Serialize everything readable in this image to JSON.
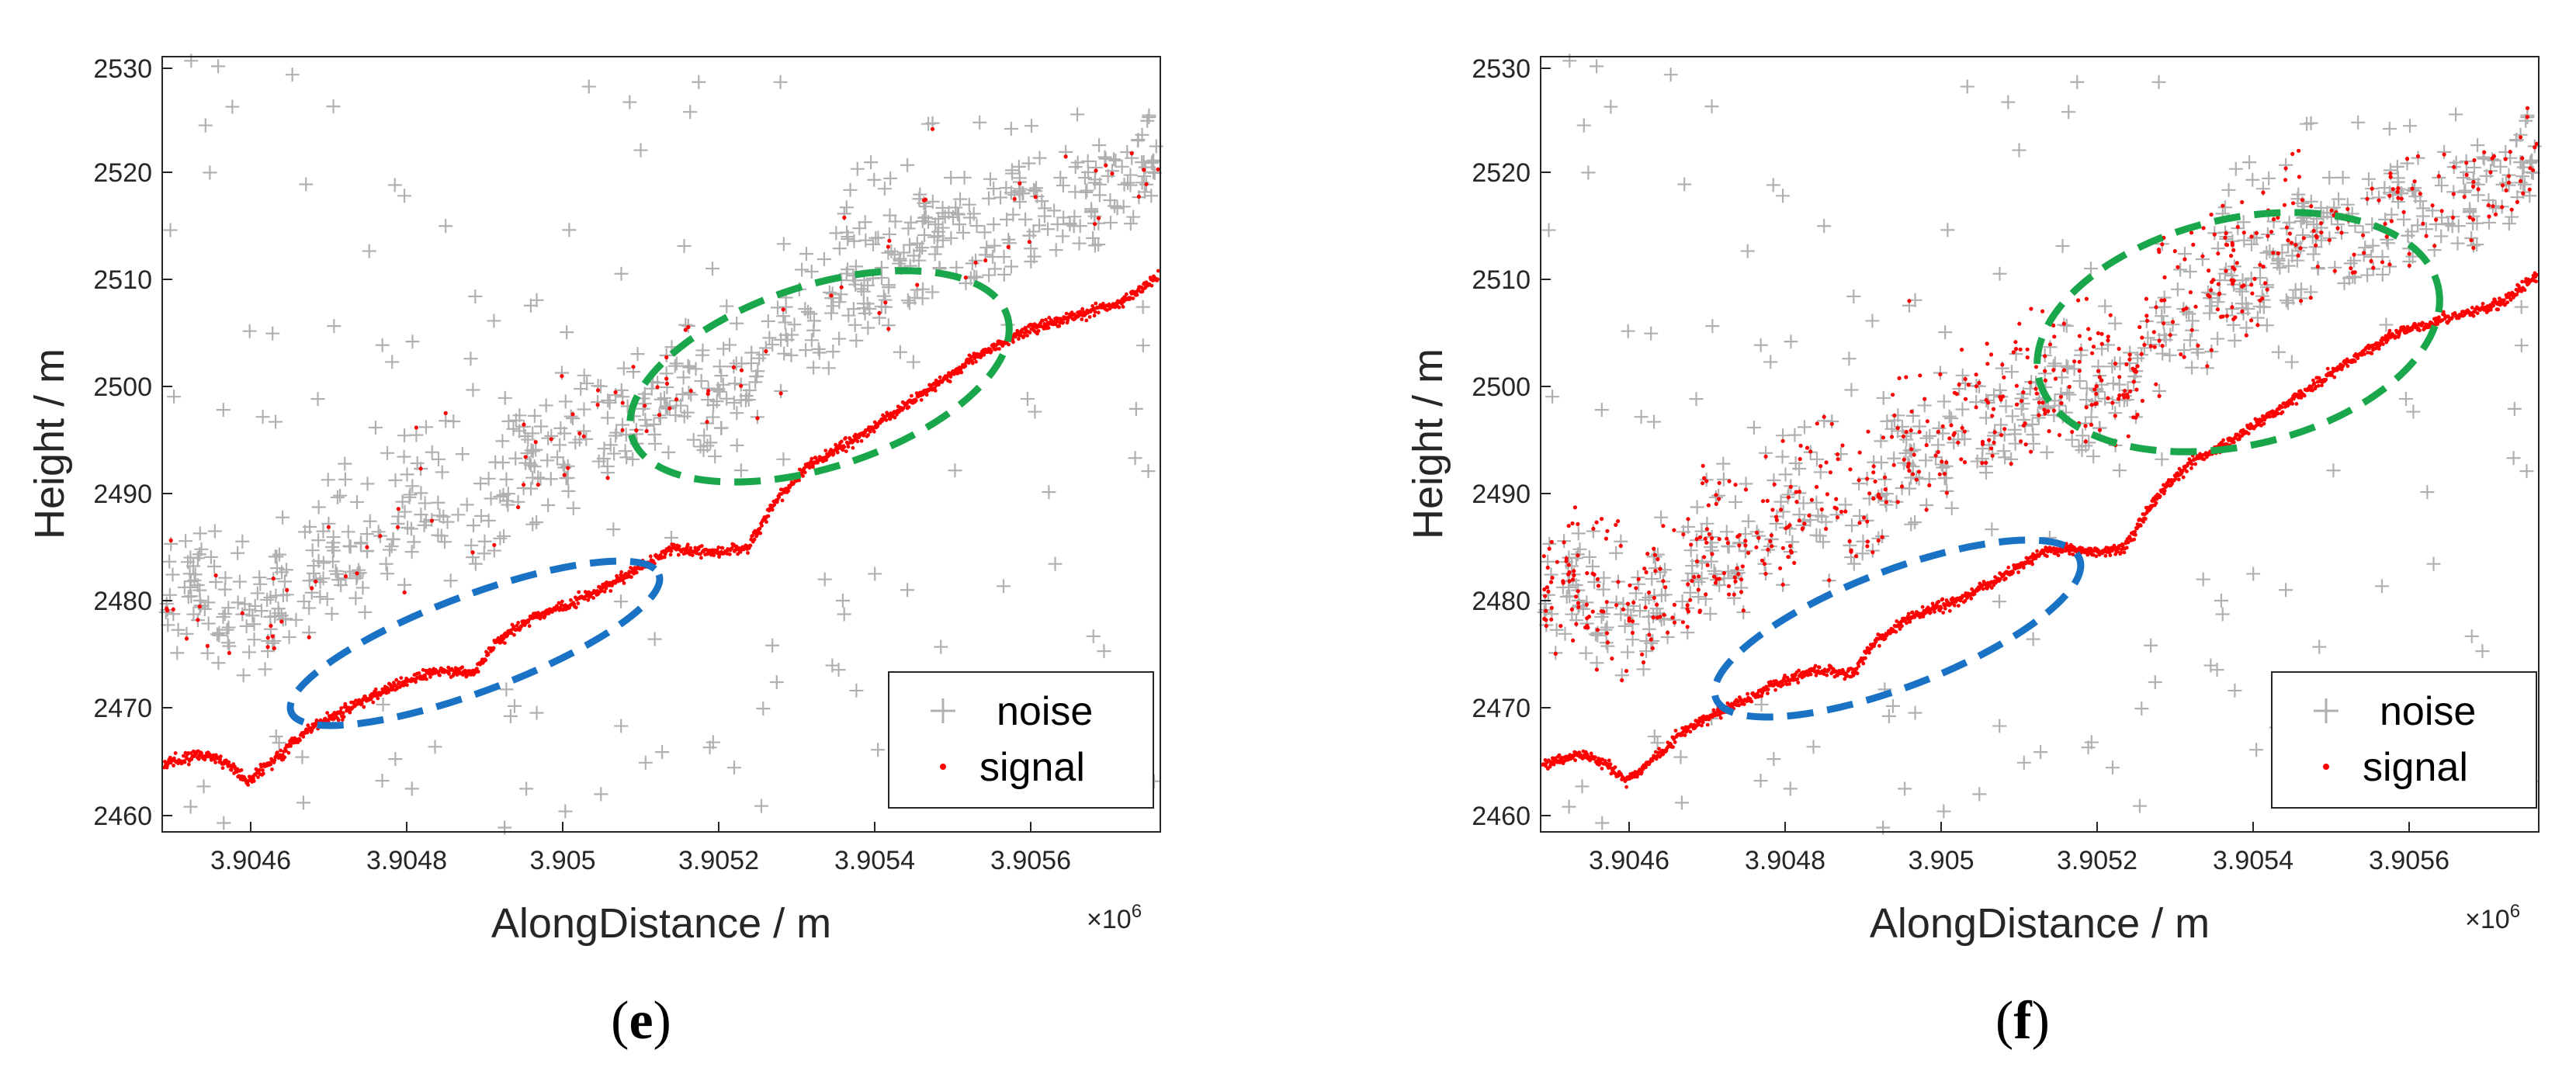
{
  "colors": {
    "noise": "#b0b0b0",
    "signal": "#ff0000",
    "blue_ellipse": "#1a72c4",
    "green_ellipse": "#1aa64a",
    "axis": "#262626"
  },
  "chart_data": [
    {
      "id": "e",
      "type": "scatter",
      "caption_letter": "e",
      "caption_open": "(",
      "caption_close": ")",
      "xlabel": "AlongDistance / m",
      "ylabel": "Height / m",
      "x_multiplier": "×10",
      "x_multiplier_exp": "6",
      "xlim": [
        3.90447,
        3.90575
      ],
      "ylim": [
        2458,
        2531
      ],
      "xticks": [
        3.9046,
        3.9048,
        3.905,
        3.9052,
        3.9054,
        3.9056
      ],
      "xtick_labels": [
        "3.9046",
        "3.9048",
        "3.905",
        "3.9052",
        "3.9054",
        "3.9056"
      ],
      "yticks": [
        2460,
        2470,
        2480,
        2490,
        2500,
        2510,
        2520,
        2530
      ],
      "ytick_labels": [
        "2460",
        "2470",
        "2480",
        "2490",
        "2500",
        "2510",
        "2520",
        "2530"
      ],
      "legend": {
        "placement": "bottom-right",
        "entries": [
          "noise",
          "signal"
        ]
      },
      "series": [
        {
          "name": "noise",
          "marker": "+",
          "color": "#b0b0b0"
        },
        {
          "name": "signal",
          "marker": ".",
          "color": "#ff0000"
        }
      ],
      "ground_profile": [
        [
          3.90447,
          2464.3
        ],
        [
          3.90452,
          2465.3
        ],
        [
          3.90455,
          2464.6
        ],
        [
          3.90458,
          2462.8
        ],
        [
          3.90462,
          2465.2
        ],
        [
          3.90466,
          2467.8
        ],
        [
          3.9047,
          2469.3
        ],
        [
          3.90476,
          2471.5
        ],
        [
          3.90482,
          2473.2
        ],
        [
          3.90487,
          2473.0
        ],
        [
          3.9049,
          2476.0
        ],
        [
          3.90495,
          2478.4
        ],
        [
          3.905,
          2479.6
        ],
        [
          3.90505,
          2481.5
        ],
        [
          3.90512,
          2484.6
        ],
        [
          3.90518,
          2484.3
        ],
        [
          3.90522,
          2484.8
        ],
        [
          3.90526,
          2489.5
        ],
        [
          3.9053,
          2492.5
        ],
        [
          3.90536,
          2495.0
        ],
        [
          3.90544,
          2499.0
        ],
        [
          3.9055,
          2502.0
        ],
        [
          3.90557,
          2505.0
        ],
        [
          3.90563,
          2506.3
        ],
        [
          3.9057,
          2507.8
        ],
        [
          3.90575,
          2510.4
        ]
      ],
      "annotations": [
        {
          "shape": "ellipse",
          "color": "blue",
          "label": ""
        },
        {
          "shape": "ellipse",
          "color": "green",
          "label": ""
        }
      ]
    },
    {
      "id": "f",
      "type": "scatter",
      "caption_letter": "f",
      "caption_open": "(",
      "caption_close": ")",
      "xlabel": "AlongDistance / m",
      "ylabel": "Height / m",
      "x_multiplier": "×10",
      "x_multiplier_exp": "6",
      "xlim": [
        3.90447,
        3.90575
      ],
      "ylim": [
        2458,
        2531
      ],
      "xticks": [
        3.9046,
        3.9048,
        3.905,
        3.9052,
        3.9054,
        3.9056
      ],
      "xtick_labels": [
        "3.9046",
        "3.9048",
        "3.905",
        "3.9052",
        "3.9054",
        "3.9056"
      ],
      "yticks": [
        2460,
        2470,
        2480,
        2490,
        2500,
        2510,
        2520,
        2530
      ],
      "ytick_labels": [
        "2460",
        "2470",
        "2480",
        "2490",
        "2500",
        "2510",
        "2520",
        "2530"
      ],
      "legend": {
        "placement": "bottom-right",
        "entries": [
          "noise",
          "signal"
        ]
      },
      "series": [
        {
          "name": "noise",
          "marker": "+",
          "color": "#b0b0b0"
        },
        {
          "name": "signal",
          "marker": ".",
          "color": "#ff0000"
        }
      ],
      "ground_profile": [
        [
          3.90447,
          2464.3
        ],
        [
          3.90452,
          2465.3
        ],
        [
          3.90455,
          2464.6
        ],
        [
          3.90458,
          2462.8
        ],
        [
          3.90462,
          2465.2
        ],
        [
          3.90466,
          2467.8
        ],
        [
          3.9047,
          2469.3
        ],
        [
          3.90476,
          2471.5
        ],
        [
          3.90482,
          2473.2
        ],
        [
          3.90487,
          2473.0
        ],
        [
          3.9049,
          2476.0
        ],
        [
          3.90495,
          2478.4
        ],
        [
          3.905,
          2479.6
        ],
        [
          3.90505,
          2481.5
        ],
        [
          3.90512,
          2484.6
        ],
        [
          3.90518,
          2484.3
        ],
        [
          3.90522,
          2484.8
        ],
        [
          3.90526,
          2489.5
        ],
        [
          3.9053,
          2492.5
        ],
        [
          3.90536,
          2495.0
        ],
        [
          3.90544,
          2499.0
        ],
        [
          3.9055,
          2502.0
        ],
        [
          3.90557,
          2505.0
        ],
        [
          3.90563,
          2506.3
        ],
        [
          3.9057,
          2507.8
        ],
        [
          3.90575,
          2510.4
        ]
      ],
      "annotations": [
        {
          "shape": "ellipse",
          "color": "blue",
          "label": ""
        },
        {
          "shape": "ellipse",
          "color": "green",
          "label": ""
        }
      ]
    }
  ]
}
